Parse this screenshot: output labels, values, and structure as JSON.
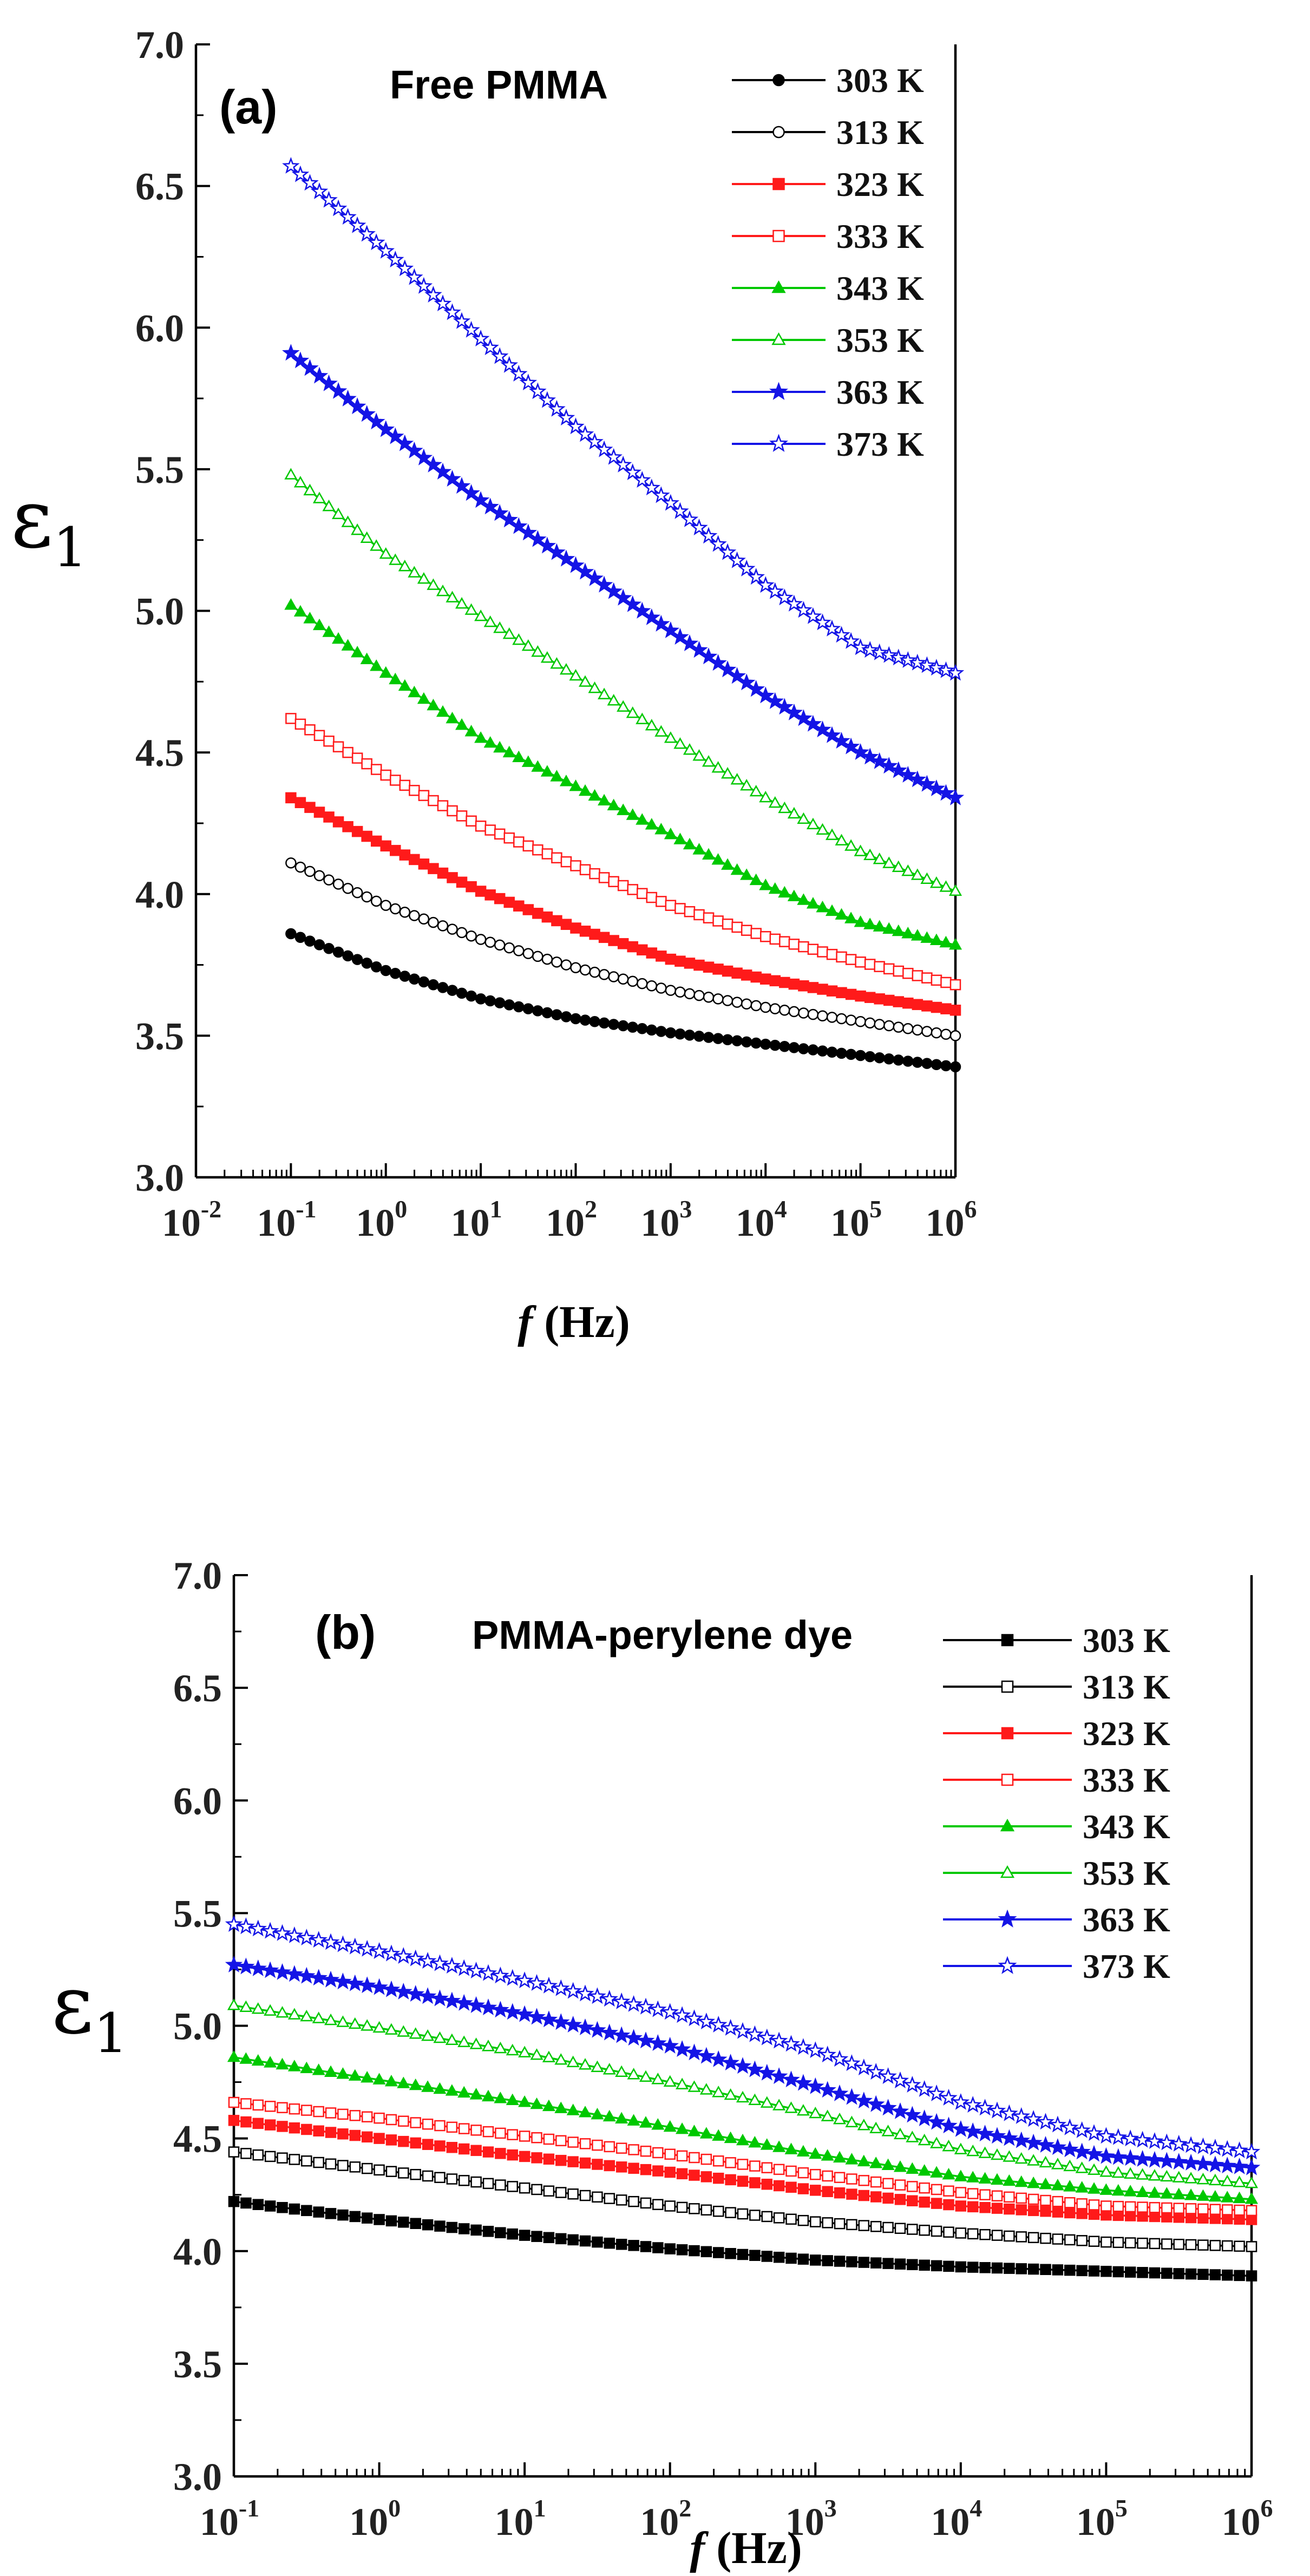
{
  "chart_data": [
    {
      "type": "line",
      "panel_label": "(a)",
      "title": "Free PMMA",
      "xlabel_symbol": "f",
      "xlabel_unit": "(Hz)",
      "ylabel_symbol": "ε",
      "ylabel_subscript": "1",
      "x_scale": "log",
      "xlim": [
        0.01,
        1000000
      ],
      "ylim": [
        3.0,
        7.0
      ],
      "x_ticks": [
        {
          "base": "10",
          "exp": "-2"
        },
        {
          "base": "10",
          "exp": "-1"
        },
        {
          "base": "10",
          "exp": "0"
        },
        {
          "base": "10",
          "exp": "1"
        },
        {
          "base": "10",
          "exp": "2"
        },
        {
          "base": "10",
          "exp": "3"
        },
        {
          "base": "10",
          "exp": "4"
        },
        {
          "base": "10",
          "exp": "5"
        },
        {
          "base": "10",
          "exp": "6"
        }
      ],
      "y_ticks": [
        "3.0",
        "3.5",
        "4.0",
        "4.5",
        "5.0",
        "5.5",
        "6.0",
        "6.5",
        "7.0"
      ],
      "legend_position": "top-right",
      "x": [
        0.1,
        1,
        10,
        100,
        1000,
        10000,
        100000,
        1000000
      ],
      "series": [
        {
          "name": "303 K",
          "color": "#000000",
          "marker": "circle",
          "filled": true,
          "values": [
            3.86,
            3.73,
            3.63,
            3.56,
            3.51,
            3.47,
            3.43,
            3.39
          ]
        },
        {
          "name": "313 K",
          "color": "#000000",
          "marker": "circle",
          "filled": false,
          "values": [
            4.11,
            3.96,
            3.84,
            3.74,
            3.66,
            3.6,
            3.55,
            3.5
          ]
        },
        {
          "name": "323 K",
          "color": "#ff1a1a",
          "marker": "square",
          "filled": true,
          "values": [
            4.34,
            4.17,
            4.01,
            3.88,
            3.77,
            3.7,
            3.64,
            3.59
          ]
        },
        {
          "name": "333 K",
          "color": "#ff1a1a",
          "marker": "square",
          "filled": false,
          "values": [
            4.62,
            4.42,
            4.24,
            4.1,
            3.96,
            3.85,
            3.76,
            3.68
          ]
        },
        {
          "name": "343 K",
          "color": "#00c800",
          "marker": "triangle",
          "filled": true,
          "values": [
            5.02,
            4.78,
            4.55,
            4.38,
            4.21,
            4.03,
            3.9,
            3.82
          ]
        },
        {
          "name": "353 K",
          "color": "#00c800",
          "marker": "triangle",
          "filled": false,
          "values": [
            5.48,
            5.2,
            4.98,
            4.77,
            4.55,
            4.34,
            4.15,
            4.01
          ]
        },
        {
          "name": "363 K",
          "color": "#1414e6",
          "marker": "star",
          "filled": true,
          "values": [
            5.91,
            5.64,
            5.39,
            5.16,
            4.93,
            4.7,
            4.5,
            4.34
          ]
        },
        {
          "name": "373 K",
          "color": "#1414e6",
          "marker": "star",
          "filled": false,
          "values": [
            6.57,
            6.27,
            5.96,
            5.65,
            5.38,
            5.09,
            4.87,
            4.78
          ]
        }
      ]
    },
    {
      "type": "line",
      "panel_label": "(b)",
      "title": "PMMA-perylene dye",
      "xlabel_symbol": "f",
      "xlabel_unit": "(Hz)",
      "ylabel_symbol": "ε",
      "ylabel_subscript": "1",
      "x_scale": "log",
      "xlim": [
        0.1,
        1000000
      ],
      "ylim": [
        3.0,
        7.0
      ],
      "x_ticks": [
        {
          "base": "10",
          "exp": "-1"
        },
        {
          "base": "10",
          "exp": "0"
        },
        {
          "base": "10",
          "exp": "1"
        },
        {
          "base": "10",
          "exp": "2"
        },
        {
          "base": "10",
          "exp": "3"
        },
        {
          "base": "10",
          "exp": "4"
        },
        {
          "base": "10",
          "exp": "5"
        },
        {
          "base": "10",
          "exp": "6"
        }
      ],
      "y_ticks": [
        "3.0",
        "3.5",
        "4.0",
        "4.5",
        "5.0",
        "5.5",
        "6.0",
        "6.5",
        "7.0"
      ],
      "legend_position": "top-right",
      "x": [
        0.1,
        1,
        10,
        100,
        1000,
        10000,
        100000,
        1000000
      ],
      "series": [
        {
          "name": "303 K",
          "color": "#000000",
          "marker": "square",
          "filled": true,
          "values": [
            4.22,
            4.14,
            4.07,
            4.01,
            3.96,
            3.93,
            3.91,
            3.89
          ]
        },
        {
          "name": "313 K",
          "color": "#000000",
          "marker": "square",
          "filled": false,
          "values": [
            4.44,
            4.36,
            4.28,
            4.2,
            4.13,
            4.08,
            4.04,
            4.02
          ]
        },
        {
          "name": "323 K",
          "color": "#ff1a1a",
          "marker": "square",
          "filled": true,
          "values": [
            4.58,
            4.5,
            4.42,
            4.35,
            4.27,
            4.2,
            4.16,
            4.14
          ]
        },
        {
          "name": "333 K",
          "color": "#ff1a1a",
          "marker": "square",
          "filled": false,
          "values": [
            4.66,
            4.59,
            4.51,
            4.43,
            4.34,
            4.26,
            4.2,
            4.18
          ]
        },
        {
          "name": "343 K",
          "color": "#00c800",
          "marker": "triangle",
          "filled": true,
          "values": [
            4.86,
            4.76,
            4.66,
            4.55,
            4.43,
            4.33,
            4.27,
            4.23
          ]
        },
        {
          "name": "353 K",
          "color": "#00c800",
          "marker": "triangle",
          "filled": false,
          "values": [
            5.09,
            4.99,
            4.88,
            4.75,
            4.61,
            4.45,
            4.35,
            4.3
          ]
        },
        {
          "name": "363 K",
          "color": "#1414e6",
          "marker": "star",
          "filled": true,
          "values": [
            5.27,
            5.17,
            5.05,
            4.91,
            4.73,
            4.54,
            4.42,
            4.37
          ]
        },
        {
          "name": "373 K",
          "color": "#1414e6",
          "marker": "star",
          "filled": false,
          "values": [
            5.45,
            5.33,
            5.2,
            5.06,
            4.89,
            4.66,
            4.51,
            4.44
          ]
        }
      ]
    }
  ]
}
